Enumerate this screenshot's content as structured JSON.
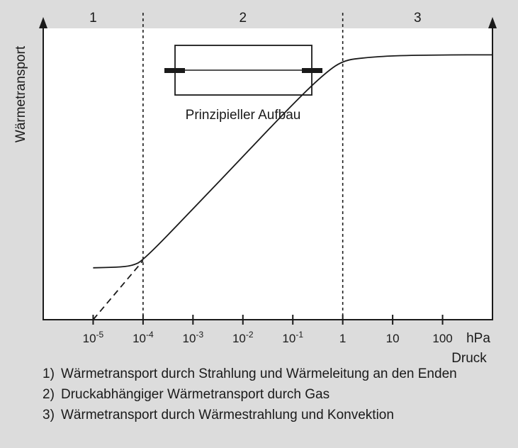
{
  "chart_data": {
    "type": "line",
    "title": "",
    "ylabel": "Wärmetransport",
    "xlabel": "Druck",
    "x_unit": "hPa",
    "x_scale": "log",
    "xlim": [
      1e-06,
      1000
    ],
    "x_ticks": [
      {
        "value": 1e-05,
        "base": "10",
        "exp": "-5"
      },
      {
        "value": 0.0001,
        "base": "10",
        "exp": "-4"
      },
      {
        "value": 0.001,
        "base": "10",
        "exp": "-3"
      },
      {
        "value": 0.01,
        "base": "10",
        "exp": "-2"
      },
      {
        "value": 0.1,
        "base": "10",
        "exp": "-1"
      },
      {
        "value": 1,
        "base": "1",
        "exp": ""
      },
      {
        "value": 10,
        "base": "10",
        "exp": ""
      },
      {
        "value": 100,
        "base": "100",
        "exp": ""
      }
    ],
    "y_ticks": "none",
    "ylim": [
      0,
      1
    ],
    "zones": [
      {
        "label": "1",
        "from": 1e-06,
        "to": 0.0001
      },
      {
        "label": "2",
        "from": 0.0001,
        "to": 1
      },
      {
        "label": "3",
        "from": 1,
        "to": 1000
      }
    ],
    "zone_boundaries": [
      0.0001,
      1
    ],
    "series": [
      {
        "style": "solid",
        "points": [
          [
            1e-05,
            0.178
          ],
          [
            3e-05,
            0.18
          ],
          [
            6e-05,
            0.185
          ],
          [
            0.0001,
            0.203
          ],
          [
            0.001,
            0.38
          ],
          [
            0.01,
            0.56
          ],
          [
            0.1,
            0.74
          ],
          [
            0.4,
            0.84
          ],
          [
            1,
            0.89
          ],
          [
            3,
            0.9
          ],
          [
            10,
            0.906
          ],
          [
            100,
            0.909
          ],
          [
            1000,
            0.909
          ]
        ]
      },
      {
        "style": "dashed",
        "points": [
          [
            1e-05,
            0.0
          ],
          [
            0.0001,
            0.203
          ]
        ]
      }
    ],
    "inset": {
      "label": "Prinzipieller Aufbau"
    },
    "grid": false,
    "legend": [
      {
        "num": "1)",
        "text": "Wärmetransport durch Strahlung und Wärmeleitung an den Enden"
      },
      {
        "num": "2)",
        "text": "Druckabhängiger Wärmetransport durch Gas"
      },
      {
        "num": "3)",
        "text": "Wärmetransport durch Wärmestrahlung und Konvektion"
      }
    ]
  },
  "colors": {
    "background": "#dcdcdc",
    "plot_area": "#ffffff",
    "ink": "#1a1a1a"
  }
}
